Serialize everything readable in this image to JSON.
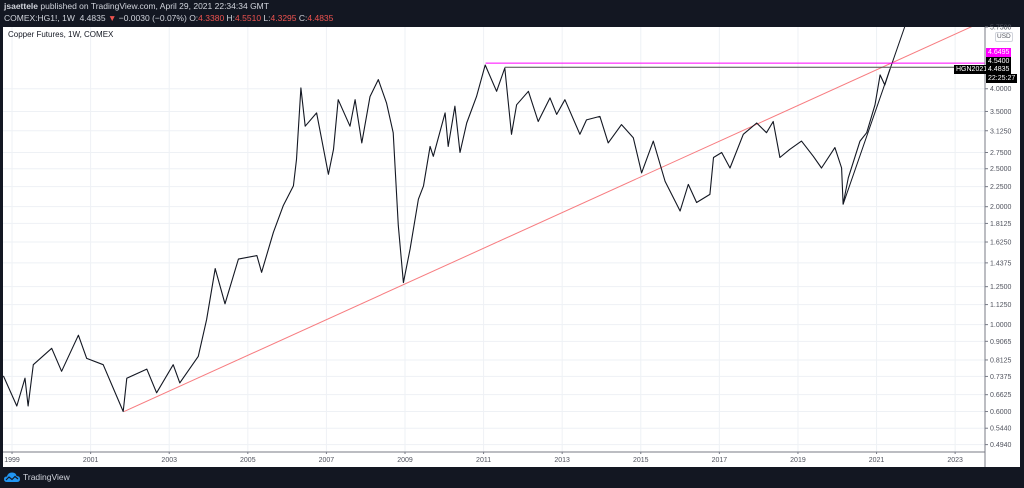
{
  "header": {
    "author": "jsaettele",
    "published": "published on TradingView.com, April 29, 2021 22:34:34 GMT",
    "symbol": "COMEX:HG1!, 1W",
    "last": "4.4835",
    "change": "−0.0030 (−0.07%)",
    "o_label": "O:",
    "o": "4.3380",
    "h_label": "H:",
    "h": "4.5510",
    "l_label": "L:",
    "l": "4.3295",
    "c_label": "C:",
    "c": "4.4835"
  },
  "footer": {
    "brand": "TradingView"
  },
  "colors": {
    "background": "#131722",
    "down": "#ef5350",
    "trendline": "#f77c80",
    "highline": "#ff00ff",
    "series": "#131722"
  },
  "price_labels": {
    "high": "4.6495",
    "resistance": "4.5400",
    "last": "4.4835",
    "contract": "HGN2021",
    "countdown": "22:25:27",
    "currency": "USD"
  },
  "chart_data": {
    "type": "line",
    "title": "Copper Futures, 1W, COMEX",
    "y_scale": "log",
    "ylim": [
      0.49,
      5.75
    ],
    "xlim": [
      1998.77,
      2023.76
    ],
    "grid": true,
    "yticks": [
      "5.7500",
      "4.0000",
      "3.5000",
      "3.1250",
      "2.7500",
      "2.5000",
      "2.2500",
      "2.0000",
      "1.8125",
      "1.6250",
      "1.4375",
      "1.2500",
      "1.1250",
      "1.0000",
      "0.9065",
      "0.8125",
      "0.7375",
      "0.6625",
      "0.6000",
      "0.5440",
      "0.4940"
    ],
    "xticks": [
      "1999",
      "2001",
      "2003",
      "2005",
      "2007",
      "2009",
      "2011",
      "2013",
      "2015",
      "2017",
      "2019",
      "2021",
      "2023"
    ],
    "series": [
      {
        "points": [
          [
            1998.78,
            0.74
          ],
          [
            1999.12,
            0.62
          ],
          [
            1999.33,
            0.73
          ],
          [
            1999.41,
            0.62
          ],
          [
            1999.54,
            0.79
          ],
          [
            2000.01,
            0.87
          ],
          [
            2000.26,
            0.76
          ],
          [
            2000.69,
            0.94
          ],
          [
            2000.9,
            0.82
          ],
          [
            2001.32,
            0.79
          ],
          [
            2001.83,
            0.6
          ],
          [
            2001.92,
            0.73
          ],
          [
            2002.43,
            0.77
          ],
          [
            2002.68,
            0.67
          ],
          [
            2003.1,
            0.79
          ],
          [
            2003.27,
            0.71
          ],
          [
            2003.74,
            0.83
          ],
          [
            2003.95,
            1.03
          ],
          [
            2004.17,
            1.39
          ],
          [
            2004.42,
            1.13
          ],
          [
            2004.76,
            1.47
          ],
          [
            2005.23,
            1.5
          ],
          [
            2005.35,
            1.36
          ],
          [
            2005.65,
            1.72
          ],
          [
            2005.9,
            2.01
          ],
          [
            2006.16,
            2.26
          ],
          [
            2006.24,
            2.64
          ],
          [
            2006.35,
            4.02
          ],
          [
            2006.46,
            3.21
          ],
          [
            2006.75,
            3.47
          ],
          [
            2007.05,
            2.42
          ],
          [
            2007.18,
            2.8
          ],
          [
            2007.3,
            3.75
          ],
          [
            2007.6,
            3.21
          ],
          [
            2007.73,
            3.75
          ],
          [
            2007.9,
            2.91
          ],
          [
            2008.11,
            3.82
          ],
          [
            2008.32,
            4.22
          ],
          [
            2008.53,
            3.68
          ],
          [
            2008.7,
            3.09
          ],
          [
            2008.83,
            1.79
          ],
          [
            2008.96,
            1.28
          ],
          [
            2009.13,
            1.56
          ],
          [
            2009.34,
            2.09
          ],
          [
            2009.47,
            2.26
          ],
          [
            2009.64,
            2.85
          ],
          [
            2009.72,
            2.69
          ],
          [
            2010.02,
            3.47
          ],
          [
            2010.1,
            2.85
          ],
          [
            2010.27,
            3.61
          ],
          [
            2010.4,
            2.75
          ],
          [
            2010.57,
            3.27
          ],
          [
            2010.82,
            3.82
          ],
          [
            2011.04,
            4.6
          ],
          [
            2011.33,
            3.94
          ],
          [
            2011.54,
            4.52
          ],
          [
            2011.71,
            3.06
          ],
          [
            2011.84,
            3.64
          ],
          [
            2012.14,
            3.94
          ],
          [
            2012.39,
            3.3
          ],
          [
            2012.69,
            3.79
          ],
          [
            2012.86,
            3.44
          ],
          [
            2013.07,
            3.75
          ],
          [
            2013.45,
            3.06
          ],
          [
            2013.62,
            3.33
          ],
          [
            2013.96,
            3.4
          ],
          [
            2014.17,
            2.91
          ],
          [
            2014.51,
            3.24
          ],
          [
            2014.81,
            3.0
          ],
          [
            2015.02,
            2.44
          ],
          [
            2015.32,
            2.94
          ],
          [
            2015.62,
            2.32
          ],
          [
            2016.0,
            1.95
          ],
          [
            2016.21,
            2.28
          ],
          [
            2016.42,
            2.05
          ],
          [
            2016.76,
            2.15
          ],
          [
            2016.85,
            2.67
          ],
          [
            2017.06,
            2.75
          ],
          [
            2017.27,
            2.51
          ],
          [
            2017.61,
            3.06
          ],
          [
            2017.95,
            3.27
          ],
          [
            2018.2,
            3.09
          ],
          [
            2018.37,
            3.3
          ],
          [
            2018.54,
            2.67
          ],
          [
            2018.79,
            2.8
          ],
          [
            2019.09,
            2.94
          ],
          [
            2019.39,
            2.69
          ],
          [
            2019.6,
            2.51
          ],
          [
            2019.94,
            2.83
          ],
          [
            2020.11,
            2.51
          ],
          [
            2020.15,
            2.03
          ],
          [
            2020.28,
            2.37
          ],
          [
            2020.58,
            2.94
          ],
          [
            2020.75,
            3.09
          ],
          [
            2020.96,
            3.64
          ],
          [
            2021.09,
            4.34
          ],
          [
            2021.21,
            4.09
          ],
          [
            2021.34,
            4.4835
          ]
        ]
      }
    ],
    "annotations": {
      "long_trendline": [
        [
          2001.85,
          0.6
        ],
        [
          2009.0,
          1.27
        ]
      ],
      "steep_trendline": [
        [
          2020.15,
          2.03
        ],
        [
          2021.34,
          4.48
        ]
      ],
      "high_line": {
        "from": 2011.05,
        "price": 4.6495
      },
      "resistance_line": {
        "from": 2011.54,
        "price": 4.54
      }
    }
  }
}
